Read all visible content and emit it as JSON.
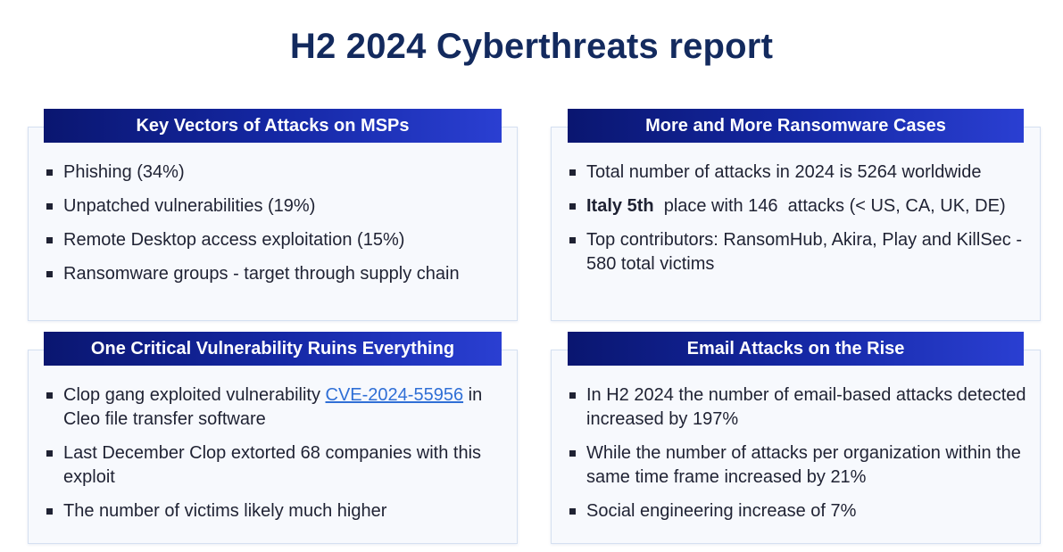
{
  "title": "H2 2024 Cyberthreats report",
  "cards": {
    "msp_vectors": {
      "header": "Key Vectors of Attacks on MSPs",
      "items": [
        "Phishing (34%)",
        "Unpatched vulnerabilities (19%)",
        "Remote Desktop access exploitation (15%)",
        "Ransomware groups - target through supply chain"
      ]
    },
    "ransomware": {
      "header": "More and More Ransomware Cases",
      "item1": "Total number of attacks in 2024 is 5264 worldwide",
      "item2_bold": "Italy 5th",
      "item2_rest": "  place with 146  attacks (< US, CA, UK, DE)",
      "item3": "Top contributors: RansomHub, Akira, Play and KillSec - 580 total victims"
    },
    "critical_vuln": {
      "header": "One Critical Vulnerability Ruins Everything",
      "item1_prefix": "Clop gang exploited vulnerability ",
      "item1_link": "CVE-2024-55956",
      "item1_suffix": " in Cleo file transfer software",
      "item2": "Last December Clop extorted 68 companies with this exploit",
      "item3": "The number of victims likely much higher"
    },
    "email_attacks": {
      "header": "Email Attacks on the Rise",
      "items": [
        "In H2 2024 the number of email-based attacks detected increased by 197%",
        "While the number of attacks per organization within the same time frame increased by 21%",
        "Social engineering increase of 7%"
      ]
    }
  },
  "colors": {
    "title": "#132a5e",
    "header_start": "#0a1670",
    "header_end": "#2a3fd2",
    "link": "#2f6fd6",
    "card_bg": "#f7f9fd"
  }
}
